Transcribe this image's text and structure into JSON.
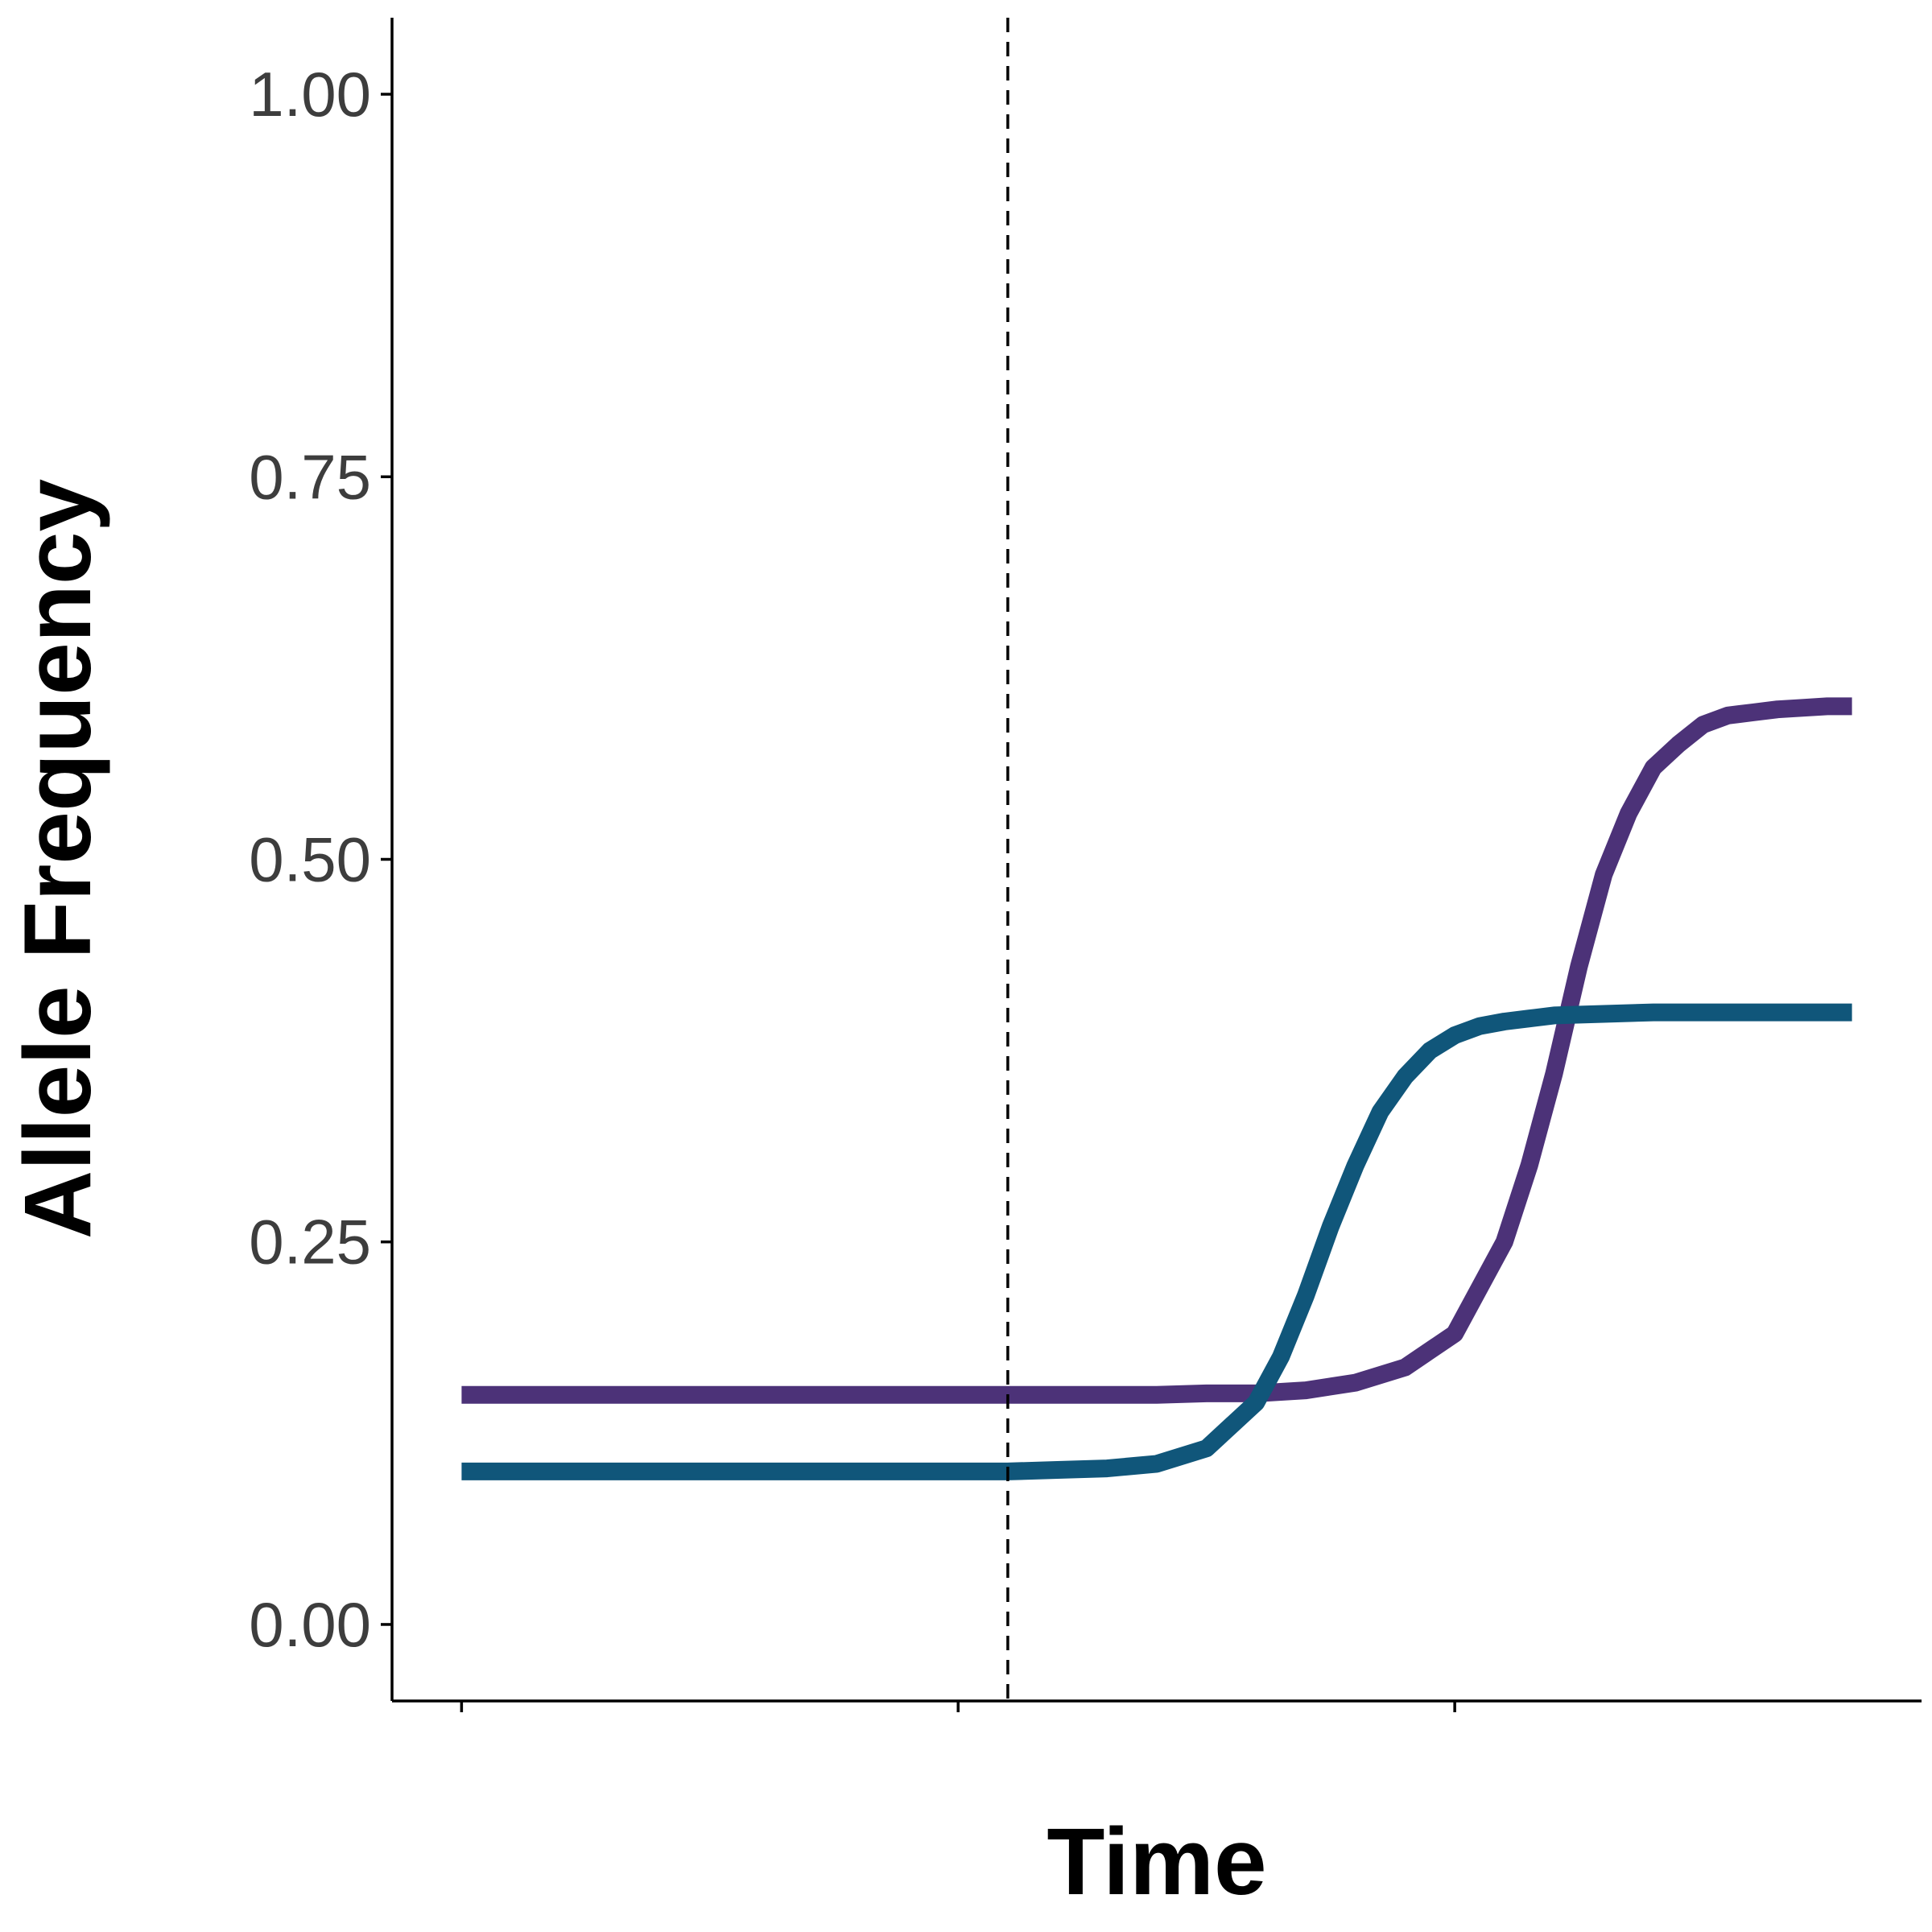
{
  "chart_data": {
    "type": "line",
    "title": "",
    "xlabel": "Time",
    "ylabel": "Allele Frequency",
    "xlim": [
      -0.14,
      2.94
    ],
    "ylim": [
      -0.05,
      1.05
    ],
    "x_ticks": [
      0,
      1,
      2
    ],
    "x_tick_labels": [
      "",
      "",
      ""
    ],
    "y_ticks": [
      0,
      0.25,
      0.5,
      0.75,
      1.0
    ],
    "y_tick_labels": [
      "0.00",
      "0.25",
      "0.50",
      "0.75",
      "1.00"
    ],
    "grid": false,
    "legend": "none",
    "vline": {
      "x": 1.1,
      "style": "dashed",
      "color": "#000000"
    },
    "series": [
      {
        "color": "#4c3278",
        "x": [
          0,
          0.1,
          0.2,
          0.3,
          0.4,
          0.5,
          0.6,
          0.7,
          0.8,
          0.9,
          1.0,
          1.1,
          1.2,
          1.3,
          1.4,
          1.5,
          1.6,
          1.7,
          1.8,
          1.9,
          2.0,
          2.1,
          2.15,
          2.2,
          2.25,
          2.3,
          2.35,
          2.4,
          2.45,
          2.5,
          2.55,
          2.6,
          2.65,
          2.7,
          2.75,
          2.8
        ],
        "values": [
          0.15,
          0.15,
          0.15,
          0.15,
          0.15,
          0.15,
          0.15,
          0.15,
          0.15,
          0.15,
          0.15,
          0.15,
          0.15,
          0.15,
          0.15,
          0.151,
          0.151,
          0.153,
          0.158,
          0.168,
          0.19,
          0.25,
          0.3,
          0.36,
          0.43,
          0.49,
          0.53,
          0.56,
          0.575,
          0.588,
          0.594,
          0.596,
          0.598,
          0.599,
          0.6,
          0.6
        ]
      },
      {
        "color": "#10567a",
        "x": [
          0,
          0.1,
          0.2,
          0.3,
          0.4,
          0.5,
          0.6,
          0.7,
          0.8,
          0.9,
          1.0,
          1.1,
          1.2,
          1.3,
          1.4,
          1.5,
          1.6,
          1.65,
          1.7,
          1.75,
          1.8,
          1.85,
          1.9,
          1.95,
          2.0,
          2.05,
          2.1,
          2.15,
          2.2,
          2.3,
          2.4,
          2.5,
          2.6,
          2.7,
          2.8
        ],
        "values": [
          0.1,
          0.1,
          0.1,
          0.1,
          0.1,
          0.1,
          0.1,
          0.1,
          0.1,
          0.1,
          0.1,
          0.1,
          0.101,
          0.102,
          0.105,
          0.115,
          0.145,
          0.175,
          0.215,
          0.26,
          0.3,
          0.335,
          0.358,
          0.375,
          0.385,
          0.391,
          0.394,
          0.396,
          0.398,
          0.399,
          0.4,
          0.4,
          0.4,
          0.4,
          0.4
        ]
      }
    ]
  }
}
